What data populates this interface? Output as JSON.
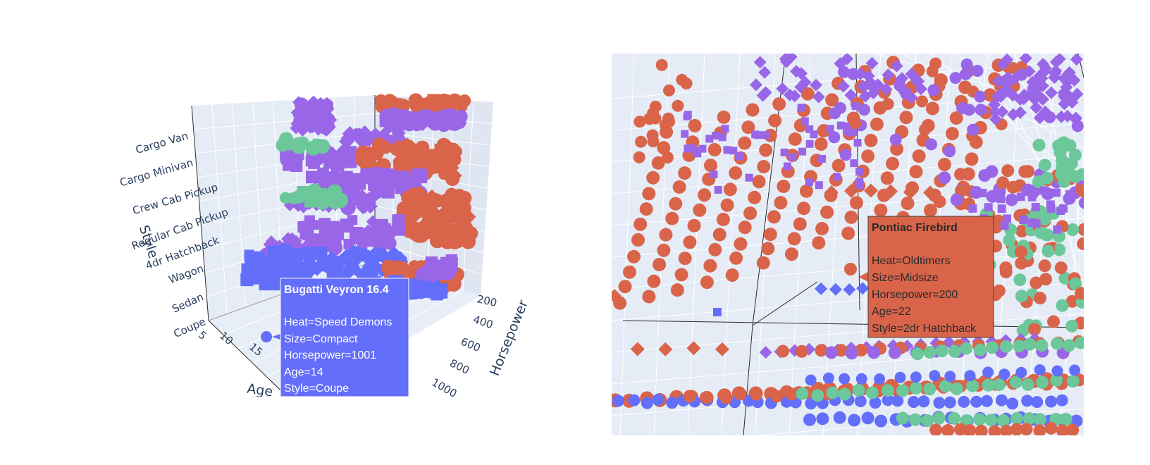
{
  "colors": {
    "background": "#ffffff",
    "scene_bg": "#e5ecf6",
    "grid": "#ffffff",
    "axis_line": "#2a2a2a",
    "text": "#2a3f5f",
    "speed_demons": "#636efa",
    "oldtimers": "#d9644a",
    "purple": "#9a66e8",
    "green": "#6cc79a"
  },
  "chart_data": [
    {
      "type": "scatter",
      "subtype": "scatter3d",
      "axes": {
        "x": {
          "title": "Age",
          "tick_labels": [
            "5",
            "10",
            "15"
          ]
        },
        "y": {
          "title": "Horsepower",
          "tick_labels": [
            "200",
            "400",
            "600",
            "800",
            "1000"
          ]
        },
        "z": {
          "title": "Style",
          "tick_labels": [
            "Coupe",
            "Sedan",
            "Wagon",
            "4dr Hatchback",
            "Regular Cab Pickup",
            "Crew Cab Pickup",
            "Cargo Minivan",
            "Cargo Van"
          ]
        }
      },
      "marker_symbols": [
        "circle",
        "square",
        "diamond"
      ],
      "grid": true,
      "hover": {
        "title": "Bugatti Veyron 16.4",
        "lines": [
          "Heat=Speed Demons",
          "Size=Compact",
          "Horsepower=1001",
          "Age=14",
          "Style=Coupe"
        ],
        "color": "#636efa"
      }
    },
    {
      "type": "scatter",
      "subtype": "scatter3d-zoomed",
      "marker_symbols": [
        "circle",
        "square",
        "diamond"
      ],
      "grid": true,
      "hover": {
        "title": "Pontiac Firebird",
        "lines": [
          "Heat=Oldtimers",
          "Size=Midsize",
          "Horsepower=200",
          "Age=22",
          "Style=2dr Hatchback"
        ],
        "color": "#d9644a"
      }
    }
  ]
}
